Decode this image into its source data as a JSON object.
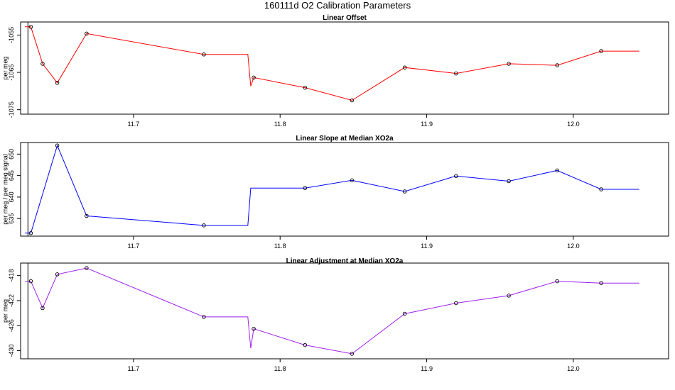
{
  "title": "160111d   O2 Calibration Parameters",
  "colors": {
    "offset": "#ff0000",
    "slope": "#0000ff",
    "adjustment": "#a020f0",
    "frame": "#000000"
  },
  "chart_data": [
    {
      "type": "line",
      "title": "Linear Offset",
      "xlabel": "",
      "ylabel": "per meg",
      "xlim": [
        11.623,
        12.065
      ],
      "ylim": [
        -1076.2,
        -1051.5
      ],
      "x_ticks": [
        11.7,
        11.8,
        11.9,
        12.0
      ],
      "x_tick_labels": [
        "11.7",
        "11.8",
        "11.9",
        "12.0"
      ],
      "y_ticks": [
        -1055,
        -1065,
        -1075
      ],
      "y_tick_labels": [
        "-1055",
        "-1065",
        "-1075"
      ],
      "marker_line_x": 11.628,
      "series": [
        {
          "color": "#ff0000",
          "line": [
            [
              11.626,
              -1052.8
            ],
            [
              11.63,
              -1052.8
            ],
            [
              11.638,
              -1062.7
            ],
            [
              11.648,
              -1067.8
            ],
            [
              11.668,
              -1054.6
            ],
            [
              11.748,
              -1060.2
            ],
            [
              11.778,
              -1060.2
            ],
            [
              11.78,
              -1068.7
            ],
            [
              11.782,
              -1066.4
            ],
            [
              11.817,
              -1069.1
            ],
            [
              11.849,
              -1072.5
            ],
            [
              11.885,
              -1063.7
            ],
            [
              11.92,
              -1065.3
            ],
            [
              11.956,
              -1062.7
            ],
            [
              11.989,
              -1063.1
            ],
            [
              12.019,
              -1059.3
            ],
            [
              12.045,
              -1059.3
            ]
          ],
          "points": [
            [
              11.63,
              -1052.8
            ],
            [
              11.638,
              -1062.7
            ],
            [
              11.648,
              -1067.8
            ],
            [
              11.668,
              -1054.6
            ],
            [
              11.748,
              -1060.2
            ],
            [
              11.782,
              -1066.4
            ],
            [
              11.817,
              -1069.1
            ],
            [
              11.849,
              -1072.5
            ],
            [
              11.885,
              -1063.7
            ],
            [
              11.92,
              -1065.3
            ],
            [
              11.956,
              -1062.7
            ],
            [
              11.989,
              -1063.1
            ],
            [
              12.019,
              -1059.3
            ]
          ]
        }
      ]
    },
    {
      "type": "line",
      "title": "Linear Slope at Median XO2a",
      "xlabel": "",
      "ylabel": "per meg / per meg signal",
      "xlim": [
        11.623,
        12.065
      ],
      "ylim": [
        630.9,
        652.7
      ],
      "x_ticks": [
        11.7,
        11.8,
        11.9,
        12.0
      ],
      "x_tick_labels": [
        "11.7",
        "11.8",
        "11.9",
        "12.0"
      ],
      "y_ticks": [
        635,
        640,
        645,
        650
      ],
      "y_tick_labels": [
        "635",
        "640",
        "645",
        "650"
      ],
      "marker_line_x": 11.628,
      "series": [
        {
          "color": "#0000ff",
          "line": [
            [
              11.626,
              631.6
            ],
            [
              11.63,
              631.6
            ],
            [
              11.648,
              652.0
            ],
            [
              11.668,
              635.6
            ],
            [
              11.748,
              633.4
            ],
            [
              11.778,
              633.4
            ],
            [
              11.78,
              642.1
            ],
            [
              11.817,
              642.1
            ],
            [
              11.849,
              643.9
            ],
            [
              11.885,
              641.3
            ],
            [
              11.92,
              644.9
            ],
            [
              11.956,
              643.7
            ],
            [
              11.989,
              646.2
            ],
            [
              12.019,
              641.8
            ],
            [
              12.045,
              641.8
            ]
          ],
          "points": [
            [
              11.63,
              631.6
            ],
            [
              11.648,
              652.0
            ],
            [
              11.668,
              635.6
            ],
            [
              11.748,
              633.4
            ],
            [
              11.817,
              642.1
            ],
            [
              11.849,
              643.9
            ],
            [
              11.885,
              641.3
            ],
            [
              11.92,
              644.9
            ],
            [
              11.956,
              643.7
            ],
            [
              11.989,
              646.2
            ],
            [
              12.019,
              641.8
            ]
          ]
        }
      ]
    },
    {
      "type": "line",
      "title": "Linear Adjustment at Median XO2a",
      "xlabel": "",
      "ylabel": "per meg",
      "xlim": [
        11.623,
        12.065
      ],
      "ylim": [
        -431.3,
        -416.0
      ],
      "x_ticks": [
        11.7,
        11.8,
        11.9,
        12.0
      ],
      "x_tick_labels": [
        "11.7",
        "11.8",
        "11.9",
        "12.0"
      ],
      "y_ticks": [
        -418,
        -422,
        -426,
        -430
      ],
      "y_tick_labels": [
        "-418",
        "-422",
        "-426",
        "-430"
      ],
      "marker_line_x": 11.628,
      "series": [
        {
          "color": "#a020f0",
          "line": [
            [
              11.626,
              -418.9
            ],
            [
              11.63,
              -418.9
            ],
            [
              11.638,
              -423.2
            ],
            [
              11.648,
              -417.8
            ],
            [
              11.668,
              -416.8
            ],
            [
              11.748,
              -424.6
            ],
            [
              11.778,
              -424.6
            ],
            [
              11.78,
              -429.6
            ],
            [
              11.782,
              -426.5
            ],
            [
              11.817,
              -429.1
            ],
            [
              11.849,
              -430.5
            ],
            [
              11.885,
              -424.1
            ],
            [
              11.92,
              -422.4
            ],
            [
              11.956,
              -421.2
            ],
            [
              11.989,
              -418.9
            ],
            [
              12.019,
              -419.2
            ],
            [
              12.045,
              -419.2
            ]
          ],
          "points": [
            [
              11.63,
              -418.9
            ],
            [
              11.638,
              -423.2
            ],
            [
              11.648,
              -417.8
            ],
            [
              11.668,
              -416.8
            ],
            [
              11.748,
              -424.6
            ],
            [
              11.782,
              -426.5
            ],
            [
              11.817,
              -429.1
            ],
            [
              11.849,
              -430.5
            ],
            [
              11.885,
              -424.1
            ],
            [
              11.92,
              -422.4
            ],
            [
              11.956,
              -421.2
            ],
            [
              11.989,
              -418.9
            ],
            [
              12.019,
              -419.2
            ]
          ]
        }
      ]
    }
  ]
}
